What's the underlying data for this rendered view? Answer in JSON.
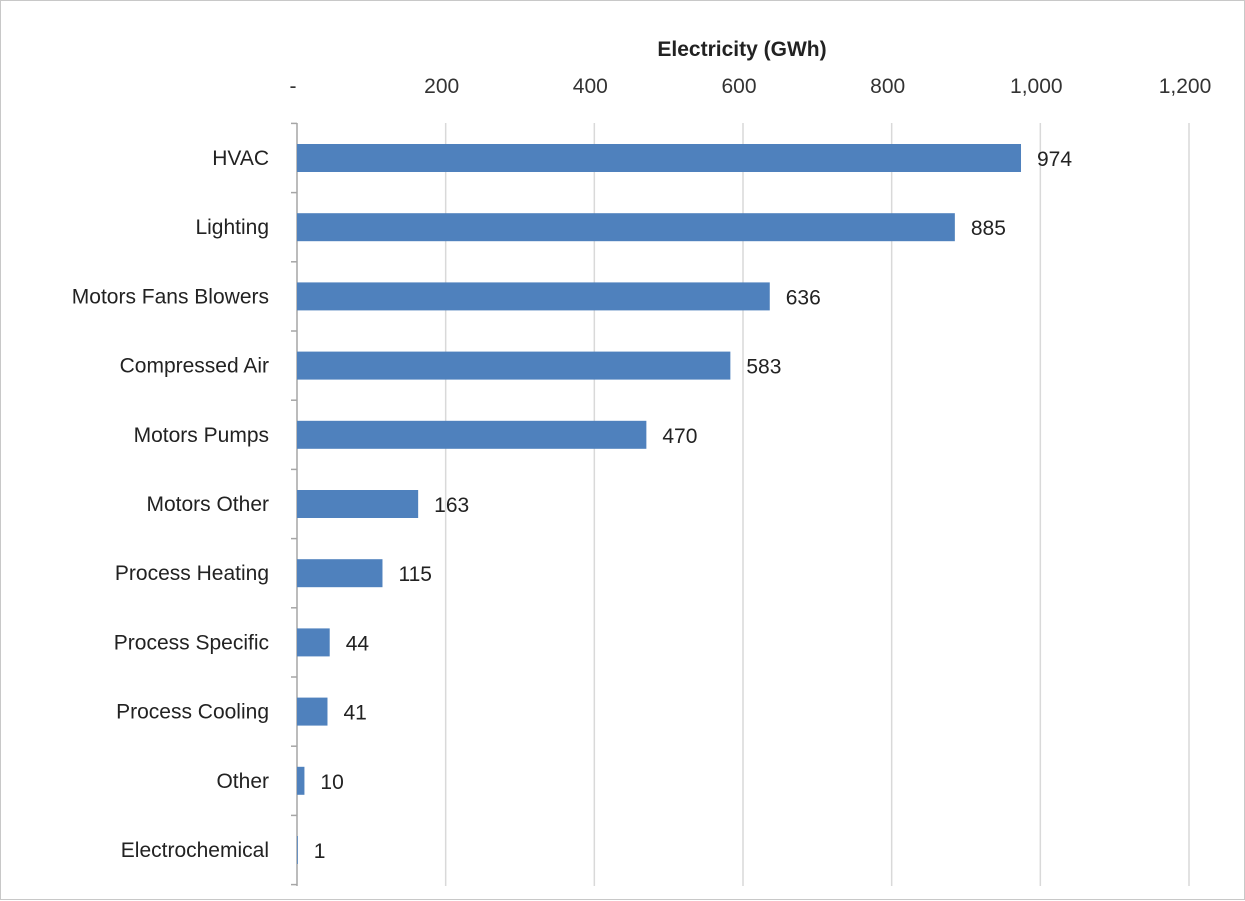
{
  "chart_data": {
    "type": "bar",
    "orientation": "horizontal",
    "xlabel": "Electricity (GWh)",
    "ylabel": "",
    "xlim": [
      0,
      1200
    ],
    "x_ticks": [
      0,
      200,
      400,
      600,
      800,
      1000,
      1200
    ],
    "x_tick_labels": [
      "-",
      "200",
      "400",
      "600",
      "800",
      "1,000",
      "1,200"
    ],
    "x_axis_position": "top",
    "grid": "vertical",
    "legend": "none",
    "categories": [
      "HVAC",
      "Lighting",
      "Motors Fans Blowers",
      "Compressed Air",
      "Motors Pumps",
      "Motors Other",
      "Process Heating",
      "Process Specific",
      "Process Cooling",
      "Other",
      "Electrochemical"
    ],
    "values": [
      974,
      885,
      636,
      583,
      470,
      163,
      115,
      44,
      41,
      10,
      1
    ],
    "data_labels": [
      "974",
      "885",
      "636",
      "583",
      "470",
      "163",
      "115",
      "44",
      "41",
      "10",
      "1"
    ],
    "bar_color": "#4f81bd",
    "gridline_color": "#d9d9d9"
  }
}
